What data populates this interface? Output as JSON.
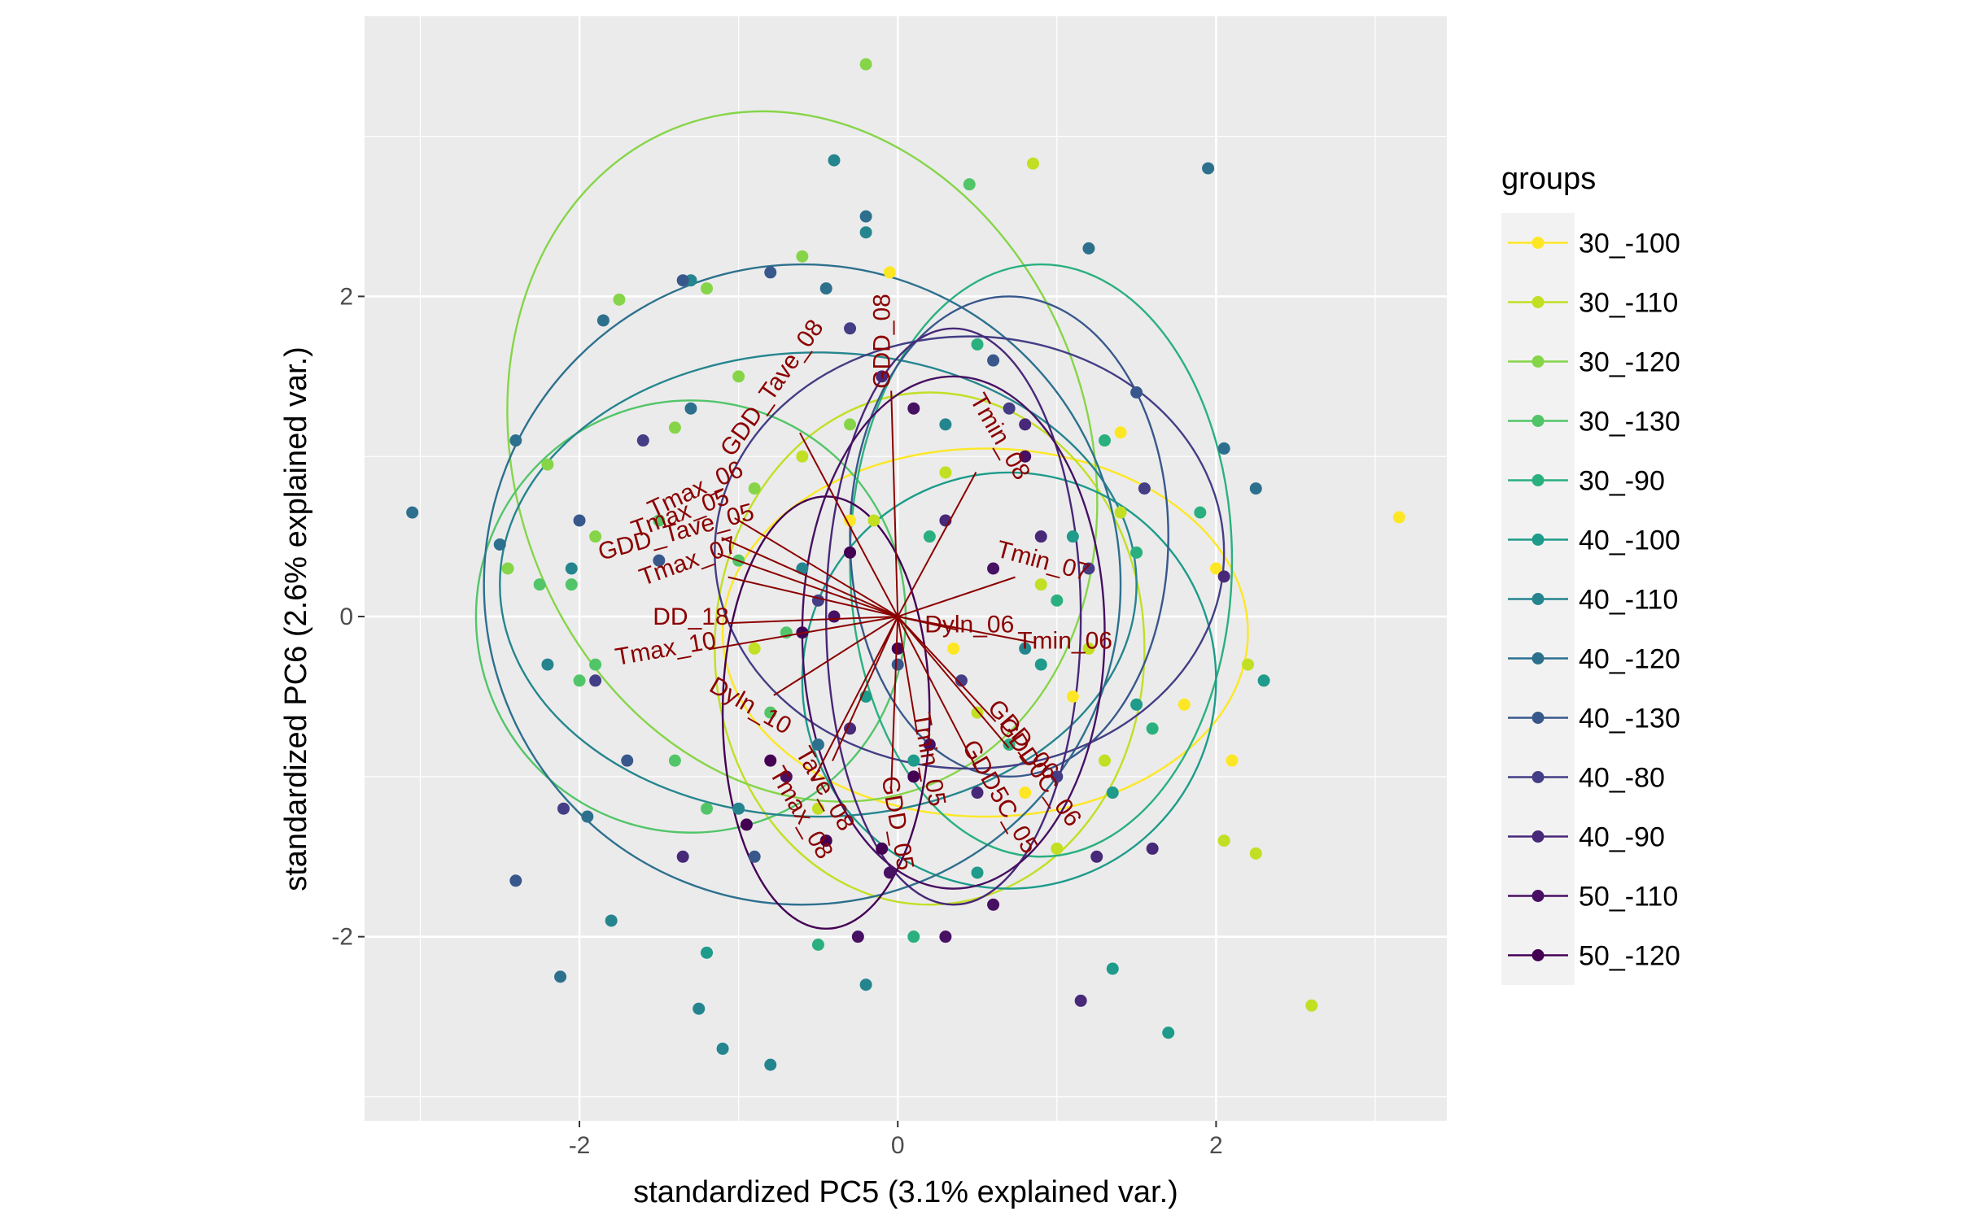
{
  "chart_data": {
    "type": "scatter",
    "title": "",
    "xlabel": "standardized PC5 (3.1% explained var.)",
    "ylabel": "standardized PC6 (2.6% explained var.)",
    "xlim": [
      -3.35,
      3.45
    ],
    "ylim": [
      -3.15,
      3.75
    ],
    "x_ticks": [
      -2,
      0,
      2
    ],
    "y_ticks": [
      -2,
      0,
      2
    ],
    "x_tick_labels": [
      "-2",
      "0",
      "2"
    ],
    "y_tick_labels": [
      "-2",
      "0",
      "2"
    ],
    "grid": true,
    "legend": {
      "title": "groups",
      "position": "right",
      "entries": [
        "30_-100",
        "30_-110",
        "30_-120",
        "30_-130",
        "30_-90",
        "40_-100",
        "40_-110",
        "40_-120",
        "40_-130",
        "40_-80",
        "40_-90",
        "50_-110",
        "50_-120"
      ]
    },
    "series": [
      {
        "name": "30_-100",
        "color": "#fde725",
        "ellipse": {
          "cx": 0.55,
          "cy": -0.1,
          "rx": 1.65,
          "ry": 1.15,
          "angle": 0
        },
        "points": [
          [
            -0.05,
            2.15
          ],
          [
            2.0,
            0.3
          ],
          [
            1.8,
            -0.55
          ],
          [
            2.1,
            -0.9
          ],
          [
            3.15,
            0.62
          ],
          [
            1.4,
            1.15
          ],
          [
            1.1,
            -0.5
          ],
          [
            0.35,
            -0.2
          ],
          [
            -0.3,
            0.6
          ],
          [
            0.8,
            -1.1
          ]
        ]
      },
      {
        "name": "30_-110",
        "color": "#c2df23",
        "ellipse": {
          "cx": 0.2,
          "cy": -0.2,
          "rx": 1.35,
          "ry": 1.6,
          "angle": 0
        },
        "points": [
          [
            2.6,
            -2.43
          ],
          [
            2.05,
            -1.4
          ],
          [
            2.25,
            -1.48
          ],
          [
            2.2,
            -0.3
          ],
          [
            0.85,
            2.83
          ],
          [
            1.4,
            0.65
          ],
          [
            1.3,
            -0.9
          ],
          [
            1.0,
            -1.45
          ],
          [
            -0.6,
            1.0
          ],
          [
            -0.9,
            -0.2
          ],
          [
            -0.15,
            0.6
          ],
          [
            0.3,
            0.9
          ],
          [
            0.5,
            -0.6
          ],
          [
            -0.5,
            -1.2
          ],
          [
            0.9,
            0.2
          ],
          [
            1.2,
            -0.2
          ]
        ]
      },
      {
        "name": "30_-120",
        "color": "#86d549",
        "ellipse": {
          "cx": -0.6,
          "cy": 1.0,
          "rx": 1.8,
          "ry": 2.2,
          "angle": -20
        },
        "points": [
          [
            -0.2,
            3.45
          ],
          [
            -0.6,
            2.25
          ],
          [
            -1.75,
            1.98
          ],
          [
            -1.4,
            1.18
          ],
          [
            -1.2,
            2.05
          ],
          [
            -2.2,
            0.95
          ],
          [
            -2.45,
            0.3
          ],
          [
            -0.9,
            0.8
          ],
          [
            -1.0,
            1.5
          ],
          [
            -0.3,
            1.2
          ],
          [
            -1.9,
            0.5
          ]
        ]
      },
      {
        "name": "30_-130",
        "color": "#52c569",
        "ellipse": {
          "cx": -1.3,
          "cy": 0.0,
          "rx": 1.35,
          "ry": 1.35,
          "angle": 0
        },
        "points": [
          [
            0.45,
            2.7
          ],
          [
            -2.05,
            0.2
          ],
          [
            -2.25,
            0.2
          ],
          [
            -1.9,
            -0.3
          ],
          [
            -1.0,
            0.35
          ],
          [
            -0.7,
            -0.1
          ],
          [
            -1.5,
            0.6
          ],
          [
            -1.4,
            -0.9
          ],
          [
            -0.8,
            -0.6
          ],
          [
            -1.2,
            -1.2
          ],
          [
            -2.0,
            -0.4
          ]
        ]
      },
      {
        "name": "30_-90",
        "color": "#2ab07f",
        "ellipse": {
          "cx": 0.9,
          "cy": 0.35,
          "rx": 1.2,
          "ry": 1.85,
          "angle": 0
        },
        "points": [
          [
            1.9,
            0.65
          ],
          [
            1.6,
            -0.7
          ],
          [
            1.5,
            0.4
          ],
          [
            0.1,
            -2.0
          ],
          [
            0.5,
            1.7
          ],
          [
            1.3,
            1.1
          ],
          [
            0.7,
            -0.8
          ],
          [
            -0.5,
            -2.05
          ],
          [
            1.0,
            0.1
          ],
          [
            0.2,
            0.5
          ]
        ]
      },
      {
        "name": "40_-100",
        "color": "#1e9b8a",
        "ellipse": {
          "cx": 0.7,
          "cy": -0.4,
          "rx": 1.3,
          "ry": 1.3,
          "angle": 0
        },
        "points": [
          [
            2.3,
            -0.4
          ],
          [
            1.5,
            -0.55
          ],
          [
            1.35,
            -1.1
          ],
          [
            1.7,
            -2.6
          ],
          [
            1.35,
            -2.2
          ],
          [
            0.5,
            -1.6
          ],
          [
            -1.2,
            -2.1
          ],
          [
            0.9,
            -0.3
          ],
          [
            0.1,
            -0.9
          ],
          [
            1.1,
            0.5
          ],
          [
            -0.2,
            -0.5
          ]
        ]
      },
      {
        "name": "40_-110",
        "color": "#25858e",
        "ellipse": {
          "cx": -0.5,
          "cy": 0.2,
          "rx": 2.0,
          "ry": 1.45,
          "angle": 0
        },
        "points": [
          [
            -0.4,
            2.85
          ],
          [
            -1.3,
            2.1
          ],
          [
            -0.2,
            2.4
          ],
          [
            -1.1,
            -2.7
          ],
          [
            -1.8,
            -1.9
          ],
          [
            -0.8,
            -2.8
          ],
          [
            -1.25,
            -2.45
          ],
          [
            -2.2,
            -0.3
          ],
          [
            -2.05,
            0.3
          ],
          [
            -1.0,
            -1.2
          ],
          [
            -0.6,
            0.3
          ],
          [
            0.3,
            1.2
          ],
          [
            0.8,
            -0.2
          ],
          [
            -0.2,
            -2.3
          ]
        ]
      },
      {
        "name": "40_-120",
        "color": "#2d708e",
        "ellipse": {
          "cx": -0.6,
          "cy": 0.2,
          "rx": 2.0,
          "ry": 2.0,
          "angle": 0
        },
        "points": [
          [
            1.95,
            2.8
          ],
          [
            -0.45,
            2.05
          ],
          [
            -3.05,
            0.65
          ],
          [
            -2.4,
            1.1
          ],
          [
            -2.5,
            0.45
          ],
          [
            -2.12,
            -2.25
          ],
          [
            -1.85,
            1.85
          ],
          [
            -1.3,
            1.3
          ],
          [
            -0.2,
            2.5
          ],
          [
            1.2,
            2.3
          ],
          [
            2.05,
            1.05
          ],
          [
            2.25,
            0.8
          ],
          [
            -1.95,
            -1.25
          ],
          [
            -0.5,
            -0.8
          ]
        ]
      },
      {
        "name": "40_-130",
        "color": "#38588c",
        "ellipse": {
          "cx": 0.7,
          "cy": 0.5,
          "rx": 1.0,
          "ry": 1.5,
          "angle": 0
        },
        "points": [
          [
            -2.4,
            -1.65
          ],
          [
            -1.35,
            2.1
          ],
          [
            -0.8,
            2.15
          ],
          [
            -1.5,
            0.35
          ],
          [
            -1.7,
            -0.9
          ],
          [
            0.6,
            1.6
          ],
          [
            1.5,
            1.4
          ],
          [
            -2.0,
            0.6
          ],
          [
            -0.9,
            -1.5
          ],
          [
            0.0,
            -0.3
          ]
        ]
      },
      {
        "name": "40_-80",
        "color": "#433e85",
        "ellipse": {
          "cx": 0.45,
          "cy": 0.4,
          "rx": 1.6,
          "ry": 1.35,
          "angle": 0
        },
        "points": [
          [
            1.55,
            0.8
          ],
          [
            1.2,
            0.3
          ],
          [
            0.7,
            1.3
          ],
          [
            -0.3,
            1.8
          ],
          [
            -0.5,
            0.1
          ],
          [
            -1.6,
            1.1
          ],
          [
            -2.1,
            -1.2
          ],
          [
            -1.9,
            -0.4
          ],
          [
            0.4,
            -0.4
          ],
          [
            1.0,
            -1.0
          ]
        ]
      },
      {
        "name": "40_-90",
        "color": "#482878",
        "ellipse": {
          "cx": 0.35,
          "cy": 0.0,
          "rx": 0.8,
          "ry": 1.8,
          "angle": 0
        },
        "points": [
          [
            2.05,
            0.25
          ],
          [
            1.15,
            -2.4
          ],
          [
            1.6,
            -1.45
          ],
          [
            1.25,
            -1.5
          ],
          [
            0.8,
            1.2
          ],
          [
            -0.1,
            1.5
          ],
          [
            -1.35,
            -1.5
          ],
          [
            0.5,
            -1.1
          ],
          [
            0.3,
            0.6
          ],
          [
            -0.3,
            -0.7
          ],
          [
            0.9,
            0.5
          ]
        ]
      },
      {
        "name": "50_-110",
        "color": "#471063",
        "ellipse": {
          "cx": 0.35,
          "cy": -0.1,
          "rx": 0.95,
          "ry": 1.6,
          "angle": 0
        },
        "points": [
          [
            0.6,
            -1.8
          ],
          [
            0.3,
            -2.0
          ],
          [
            -0.25,
            -2.0
          ],
          [
            -0.05,
            -1.6
          ],
          [
            0.8,
            1.0
          ],
          [
            0.1,
            1.3
          ],
          [
            -0.4,
            0.0
          ],
          [
            0.6,
            0.3
          ],
          [
            0.2,
            -0.8
          ],
          [
            -0.7,
            -1.0
          ]
        ]
      },
      {
        "name": "50_-120",
        "color": "#440154",
        "ellipse": {
          "cx": -0.45,
          "cy": -0.6,
          "rx": 0.65,
          "ry": 1.35,
          "angle": 0
        },
        "points": [
          [
            -0.1,
            -1.45
          ],
          [
            -0.45,
            -1.4
          ],
          [
            -0.95,
            -1.3
          ],
          [
            -0.8,
            -0.9
          ],
          [
            0.0,
            -0.2
          ],
          [
            -0.3,
            0.4
          ],
          [
            -0.6,
            -0.1
          ],
          [
            0.1,
            -1.0
          ]
        ]
      }
    ],
    "variables": [
      {
        "label": "GDD_08",
        "x": -0.05,
        "y": 1.72,
        "angle": 90
      },
      {
        "label": "GDD_Tave_08",
        "x": -0.75,
        "y": 1.4,
        "angle": 55
      },
      {
        "label": "Tmax_06",
        "x": -1.25,
        "y": 0.75,
        "angle": 25
      },
      {
        "label": "Tmax_05",
        "x": -1.35,
        "y": 0.6,
        "angle": 20
      },
      {
        "label": "GDD_Tave_05",
        "x": -1.38,
        "y": 0.48,
        "angle": 15
      },
      {
        "label": "Tmax_07",
        "x": -1.3,
        "y": 0.3,
        "angle": 20
      },
      {
        "label": "DD_18",
        "x": -1.3,
        "y": -0.05,
        "angle": 0
      },
      {
        "label": "Tmax_10",
        "x": -1.45,
        "y": -0.25,
        "angle": 10
      },
      {
        "label": "Dyln_10",
        "x": -0.95,
        "y": -0.6,
        "angle": -30
      },
      {
        "label": "Tmin_07",
        "x": 0.9,
        "y": 0.3,
        "angle": -15
      },
      {
        "label": "Tmin_06",
        "x": 1.05,
        "y": -0.2,
        "angle": 0
      },
      {
        "label": "Dyln_06",
        "x": 0.45,
        "y": -0.1,
        "angle": 0
      },
      {
        "label": "Tmin_08",
        "x": 0.6,
        "y": 1.1,
        "angle": -60
      },
      {
        "label": "GDD_06",
        "x": 0.75,
        "y": -0.8,
        "angle": -50
      },
      {
        "label": "GDD0C_06",
        "x": 0.85,
        "y": -1.0,
        "angle": -55
      },
      {
        "label": "GDD5C_05",
        "x": 0.6,
        "y": -1.15,
        "angle": -60
      },
      {
        "label": "Tmax_08",
        "x": -0.65,
        "y": -1.25,
        "angle": -60
      },
      {
        "label": "Tave_08",
        "x": -0.5,
        "y": -1.1,
        "angle": -60
      },
      {
        "label": "GDD_05",
        "x": -0.05,
        "y": -1.3,
        "angle": -80
      },
      {
        "label": "Tmin_05",
        "x": 0.15,
        "y": -0.9,
        "angle": -80
      }
    ]
  }
}
